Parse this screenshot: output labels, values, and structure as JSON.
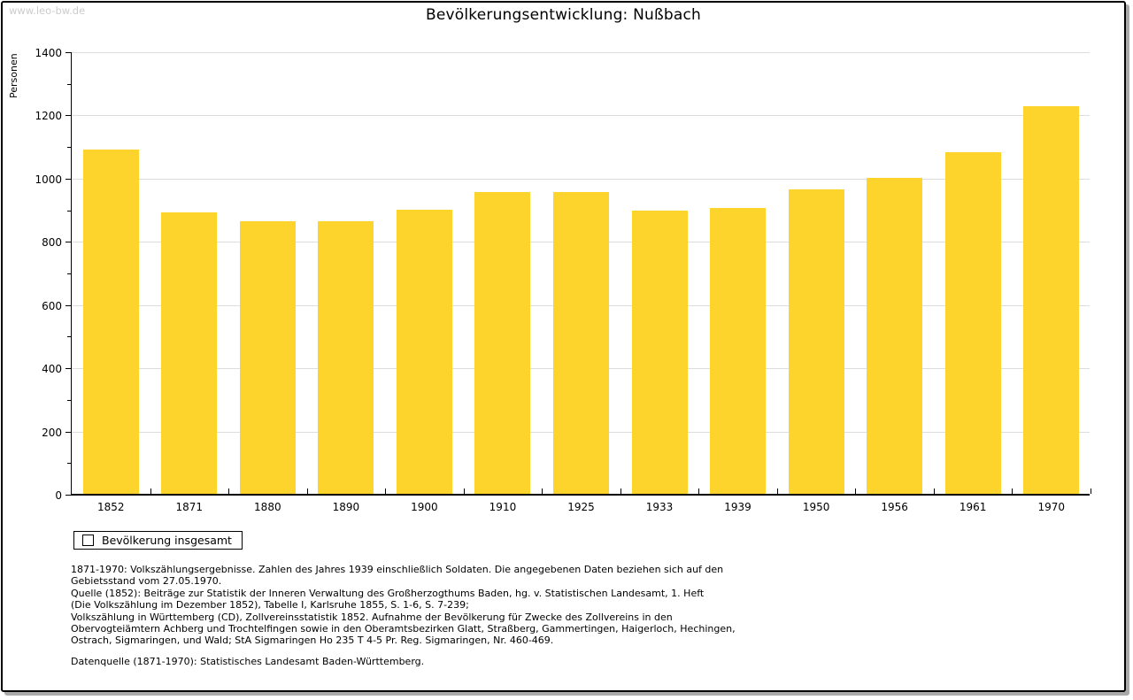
{
  "watermark": "www.leo-bw.de",
  "page": {
    "title": "Bevölkerungsentwicklung: Nußbach"
  },
  "chart_data": {
    "type": "bar",
    "title": "Bevölkerungsentwicklung: Nußbach",
    "xlabel": "",
    "ylabel": "Personen",
    "ylim": [
      0,
      1400
    ],
    "ytick_step": 200,
    "ytick_minor_step": 100,
    "grid": true,
    "legend_position": "bottom-left",
    "bar_color": "#fcd42c",
    "categories": [
      "1852",
      "1871",
      "1880",
      "1890",
      "1900",
      "1910",
      "1925",
      "1933",
      "1939",
      "1950",
      "1956",
      "1961",
      "1970"
    ],
    "series": [
      {
        "name": "Bevölkerung insgesamt",
        "values": [
          1089,
          890,
          862,
          862,
          898,
          954,
          954,
          896,
          904,
          962,
          999,
          1081,
          1226
        ]
      }
    ]
  },
  "footnotes": {
    "lines": [
      "1871-1970: Volkszählungsergebnisse. Zahlen des Jahres 1939 einschließlich Soldaten. Die angegebenen Daten beziehen sich auf den",
      "Gebietsstand vom 27.05.1970.",
      "Quelle (1852): Beiträge zur Statistik der Inneren Verwaltung des Großherzogthums Baden, hg. v. Statistischen Landesamt, 1. Heft",
      "(Die Volkszählung im Dezember 1852), Tabelle I, Karlsruhe 1855, S. 1-6, S. 7-239;",
      "Volkszählung in Württemberg (CD), Zollvereinsstatistik 1852. Aufnahme der Bevölkerung für Zwecke des Zollvereins in den",
      "Obervogteiämtern Achberg und Trochtelfingen sowie in den Oberamtsbezirken Glatt, Straßberg, Gammertingen, Haigerloch, Hechingen,",
      "Ostrach, Sigmaringen, und Wald; StA Sigmaringen Ho 235 T 4-5 Pr. Reg. Sigmaringen, Nr. 460-469."
    ]
  },
  "footer": {
    "datasource": "Datenquelle (1871-1970): Statistisches Landesamt Baden-Württemberg."
  }
}
